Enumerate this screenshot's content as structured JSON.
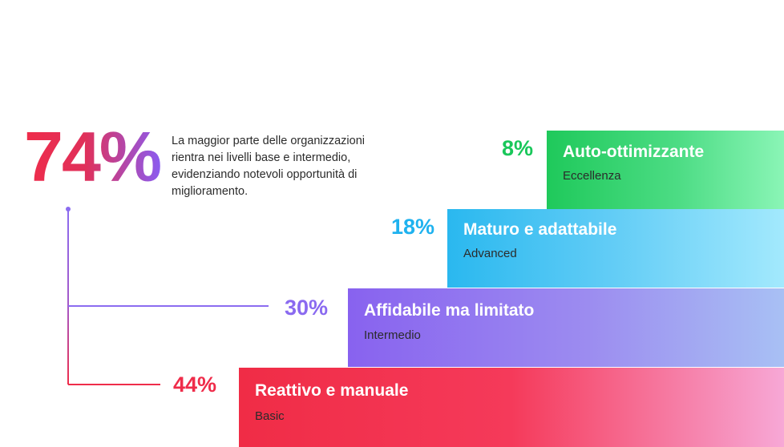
{
  "headline": {
    "value": "74%",
    "text": "La maggior parte delle organizzazioni rientra nei livelli base e intermedio, evidenziando notevoli opportunità di miglioramento."
  },
  "levels": [
    {
      "percent": "44%",
      "title": "Reattivo e manuale",
      "subtitle": "Basic",
      "color": "#ef2c4a"
    },
    {
      "percent": "30%",
      "title": "Affidabile ma limitato",
      "subtitle": "Intermedio",
      "color": "#8a6af0"
    },
    {
      "percent": "18%",
      "title": "Maturo e adattabile",
      "subtitle": "Advanced",
      "color": "#1fb2ef"
    },
    {
      "percent": "8%",
      "title": "Auto-ottimizzante",
      "subtitle": "Eccellenza",
      "color": "#19c75a"
    }
  ]
}
